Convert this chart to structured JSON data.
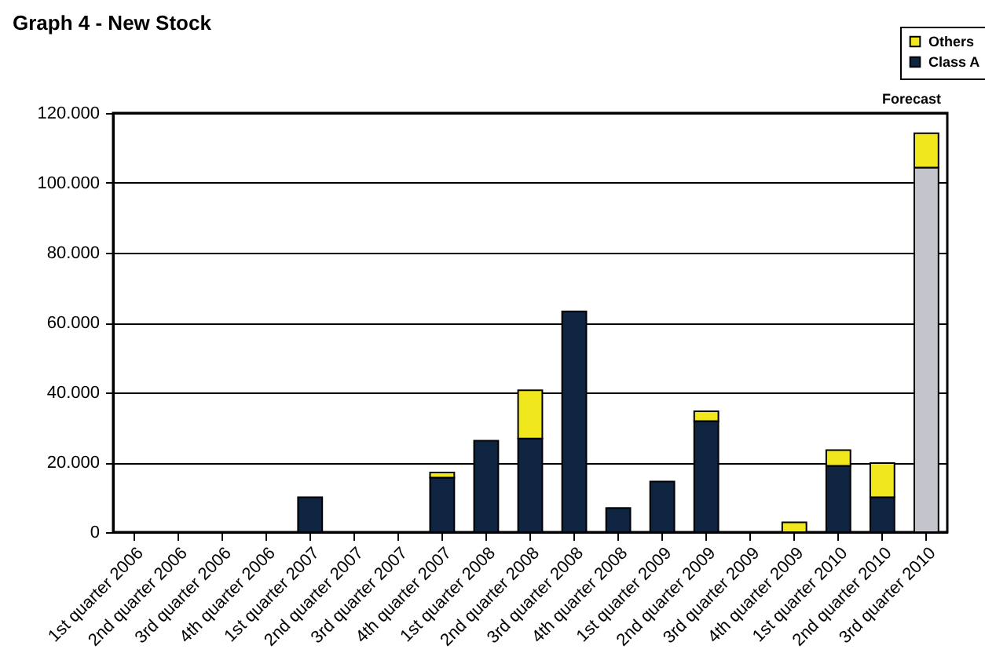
{
  "chart_data": {
    "type": "bar",
    "title": "Graph 4 - New Stock",
    "categories": [
      "1st quarter 2006",
      "2nd quarter 2006",
      "3rd quarter 2006",
      "4th quarter 2006",
      "1st quarter 2007",
      "2nd quarter 2007",
      "3rd quarter 2007",
      "4th quarter 2007",
      "1st quarter 2008",
      "2nd quarter 2008",
      "3rd quarter 2008",
      "4th quarter 2008",
      "1st quarter 2009",
      "2nd quarter 2009",
      "3rd quarter 2009",
      "4th quarter 2009",
      "1st quarter 2010",
      "2nd quarter 2010",
      "3rd quarter 2010"
    ],
    "stacked": true,
    "series": [
      {
        "name": "Class A",
        "color": "#0f2440",
        "colors": [
          null,
          null,
          null,
          null,
          "#0f2440",
          null,
          null,
          "#0f2440",
          "#0f2440",
          "#0f2440",
          "#0f2440",
          "#0f2440",
          "#0f2440",
          "#0f2440",
          null,
          null,
          "#0f2440",
          "#0f2440",
          "#c4c4cc"
        ],
        "values": [
          null,
          null,
          null,
          null,
          10000,
          null,
          null,
          15600,
          26200,
          26800,
          63200,
          6900,
          14500,
          31800,
          null,
          null,
          19000,
          10000,
          104400
        ]
      },
      {
        "name": "Others",
        "color": "#f0e81c",
        "values": [
          null,
          null,
          null,
          null,
          null,
          null,
          null,
          1500,
          null,
          13800,
          null,
          null,
          null,
          2800,
          null,
          2800,
          4500,
          9800,
          9800
        ]
      }
    ],
    "ylim": [
      0,
      120000
    ],
    "yticks": [
      {
        "value": 0,
        "label": "0"
      },
      {
        "value": 20000,
        "label": "20.000"
      },
      {
        "value": 40000,
        "label": "40.000"
      },
      {
        "value": 60000,
        "label": "60.000"
      },
      {
        "value": 80000,
        "label": "80.000"
      },
      {
        "value": 100000,
        "label": "100.000"
      },
      {
        "value": 120000,
        "label": "120.000"
      }
    ],
    "grid": "y",
    "legend": "top right",
    "annotations": [
      "Forecast"
    ]
  }
}
